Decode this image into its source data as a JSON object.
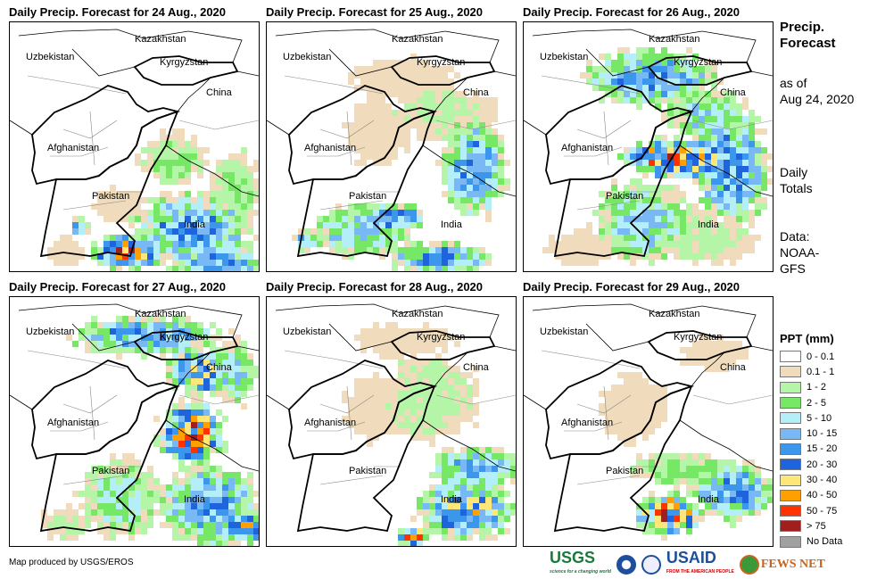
{
  "panels": [
    {
      "title": "Daily Precip. Forecast for 24 Aug., 2020"
    },
    {
      "title": "Daily Precip. Forecast for 25 Aug., 2020"
    },
    {
      "title": "Daily Precip. Forecast for 26 Aug., 2020"
    },
    {
      "title": "Daily Precip. Forecast for 27 Aug., 2020"
    },
    {
      "title": "Daily Precip. Forecast for 28 Aug., 2020"
    },
    {
      "title": "Daily Precip. Forecast for 29 Aug., 2020"
    }
  ],
  "countries": {
    "kazakhstan": "Kazakhstan",
    "uzbekistan": "Uzbekistan",
    "kyrgyzstan": "Kyrgyzstan",
    "china": "China",
    "afghanistan": "Afghanistan",
    "pakistan": "Pakistan",
    "india": "India"
  },
  "side": {
    "title1": "Precip.",
    "title2": "Forecast",
    "asof1": "as of",
    "asof2": "Aug 24, 2020",
    "daily1": "Daily",
    "daily2": "Totals",
    "data1": "Data:",
    "data2": "NOAA-",
    "data3": "GFS"
  },
  "legend": {
    "title": "PPT (mm)",
    "items": [
      {
        "label": "0 - 0.1",
        "color": "#ffffff"
      },
      {
        "label": "0.1 - 1",
        "color": "#f0dcbc"
      },
      {
        "label": "1 - 2",
        "color": "#b4f5a8"
      },
      {
        "label": "2 - 5",
        "color": "#76e866"
      },
      {
        "label": "5 - 10",
        "color": "#b4eef8"
      },
      {
        "label": "10 - 15",
        "color": "#78b8f4"
      },
      {
        "label": "15 - 20",
        "color": "#3c96ec"
      },
      {
        "label": "20 - 30",
        "color": "#1e64dc"
      },
      {
        "label": "30 - 40",
        "color": "#ffe678"
      },
      {
        "label": "40 - 50",
        "color": "#ffa000"
      },
      {
        "label": "50 - 75",
        "color": "#ff3200"
      },
      {
        "label": "> 75",
        "color": "#a01e1e"
      },
      {
        "label": "No Data",
        "color": "#a0a0a0"
      }
    ]
  },
  "credit": "Map produced by USGS/EROS",
  "logos": {
    "usgs": "USGS",
    "usgs_tag": "science for a changing world",
    "usaid": "USAID",
    "usaid_tag": "FROM THE AMERICAN PEOPLE",
    "fews": "FEWS NET"
  }
}
